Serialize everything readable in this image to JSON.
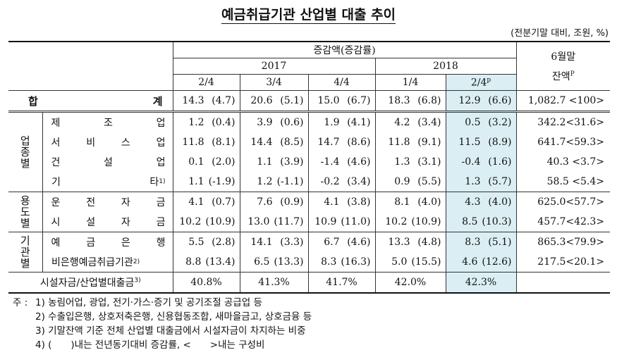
{
  "title": "예금취급기관 산업별 대출 추이",
  "unit": "(전분기말 대비, 조원, %)",
  "header": {
    "measure": "증감액(증감률)",
    "years": [
      "2017",
      "2018"
    ],
    "quarters": [
      "2/4",
      "3/4",
      "4/4",
      "1/4",
      "2/4"
    ],
    "quarter_mark": "p",
    "balance": "6월말",
    "balance_sub": "잔액",
    "balance_mark": "P"
  },
  "total": {
    "label": "합 계",
    "cells": [
      [
        "14.3",
        "(4.7)"
      ],
      [
        "20.6",
        "(5.1)"
      ],
      [
        "15.0",
        "(6.7)"
      ],
      [
        "18.3",
        "(6.8)"
      ],
      [
        "12.9",
        "(6.6)"
      ]
    ],
    "balance": "1,082.7 <100>"
  },
  "groups": [
    {
      "name": "업종별",
      "rows": [
        {
          "label": "제 조 업",
          "cells": [
            [
              "1.2",
              "(0.4)"
            ],
            [
              "3.9",
              "(0.6)"
            ],
            [
              "1.9",
              "(4.1)"
            ],
            [
              "4.2",
              "(3.4)"
            ],
            [
              "0.5",
              "(3.2)"
            ]
          ],
          "balance": "342.2<31.6>"
        },
        {
          "label": "서 비 스 업",
          "cells": [
            [
              "11.8",
              "(8.1)"
            ],
            [
              "14.4",
              "(8.5)"
            ],
            [
              "14.7",
              "(8.6)"
            ],
            [
              "11.8",
              "(9.1)"
            ],
            [
              "11.5",
              "(8.9)"
            ]
          ],
          "balance": "641.7<59.3>"
        },
        {
          "label": "건 설 업",
          "cells": [
            [
              "0.1",
              "(2.0)"
            ],
            [
              "1.1",
              "(3.9)"
            ],
            [
              "-1.4",
              "(4.6)"
            ],
            [
              "1.3",
              "(3.1)"
            ],
            [
              "-0.4",
              "(1.6)"
            ]
          ],
          "balance": "40.3 <3.7>"
        },
        {
          "label": "기 타",
          "note": "1)",
          "cells": [
            [
              "1.1",
              "(-1.9)"
            ],
            [
              "1.2",
              "(-1.1)"
            ],
            [
              "-0.2",
              "(3.4)"
            ],
            [
              "0.9",
              "(5.5)"
            ],
            [
              "1.3",
              "(5.7)"
            ]
          ],
          "balance": "58.5 <5.4>"
        }
      ]
    },
    {
      "name": "용도별",
      "rows": [
        {
          "label": "운 전 자 금",
          "cells": [
            [
              "4.1",
              "(0.7)"
            ],
            [
              "7.6",
              "(0.9)"
            ],
            [
              "4.1",
              "(3.8)"
            ],
            [
              "8.1",
              "(4.0)"
            ],
            [
              "4.3",
              "(4.0)"
            ]
          ],
          "balance": "625.0<57.7>"
        },
        {
          "label": "시 설 자 금",
          "cells": [
            [
              "10.2",
              "(10.9)"
            ],
            [
              "13.0",
              "(11.7)"
            ],
            [
              "10.9",
              "(11.0)"
            ],
            [
              "10.2",
              "(10.9)"
            ],
            [
              "8.5",
              "(10.3)"
            ]
          ],
          "balance": "457.7<42.3>"
        }
      ]
    },
    {
      "name": "기관별",
      "rows": [
        {
          "label": "예 금 은 행",
          "cells": [
            [
              "5.5",
              "(2.8)"
            ],
            [
              "14.1",
              "(3.3)"
            ],
            [
              "6.7",
              "(4.6)"
            ],
            [
              "13.3",
              "(4.8)"
            ],
            [
              "8.3",
              "(5.1)"
            ]
          ],
          "balance": "865.3<79.9>"
        },
        {
          "label": "비은행예금취급기관",
          "note": "2)",
          "cells": [
            [
              "8.8",
              "(13.4)"
            ],
            [
              "6.5",
              "(13.3)"
            ],
            [
              "8.3",
              "(16.3)"
            ],
            [
              "5.0",
              "(15.5)"
            ],
            [
              "4.6",
              "(12.6)"
            ]
          ],
          "balance": "217.5<20.1>"
        }
      ]
    }
  ],
  "ratio": {
    "label": "시설자금/산업별대출금",
    "note": "3)",
    "values": [
      "40.8%",
      "41.3%",
      "41.7%",
      "42.0%",
      "42.3%"
    ]
  },
  "footnotes": {
    "prefix": "주 :",
    "items": [
      "1) 농림어업, 광업, 전기·가스·증기 및 공기조절 공급업 등",
      "2) 수출입은행, 상호저축은행, 신용협동조합, 새마을금고, 상호금융 등",
      "3) 기말잔액 기준 전체 산업별 대출금에서 시설자금이 차지하는 비중",
      "4) (　　)내는 전년동기대비 증감률, <　　>내는 구성비"
    ]
  }
}
